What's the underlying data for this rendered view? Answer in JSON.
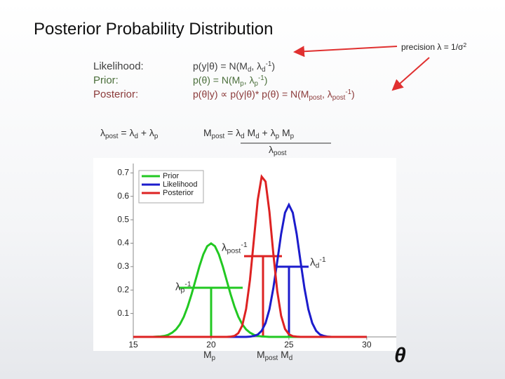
{
  "slide": {
    "title": "Posterior Probability Distribution",
    "precision_note": [
      "precision λ = 1/σ",
      "2"
    ],
    "labels": [
      "Likelihood:",
      "Prior:",
      "Posterior:"
    ],
    "likelihood_eq": [
      "p(y|θ) = N(M",
      "d",
      ", λ",
      "d",
      "-1",
      ")"
    ],
    "prior_eq": [
      "p(θ) = N(M",
      "p",
      ", λ",
      "p",
      "-1",
      ")"
    ],
    "posterior_eq": [
      "p(θ|y) ∝ p(y|θ)* p(θ) = N(M",
      "post",
      ", λ",
      "post",
      "-1",
      ")"
    ],
    "lambda_post_eq": [
      "λ",
      "post",
      " = λ",
      "d",
      " + λ",
      "p"
    ],
    "m_post_eq": {
      "lhs": [
        "M",
        "post",
        " = "
      ],
      "numerator": [
        "λ",
        "d",
        " M",
        "d",
        " + λ",
        "p",
        " M",
        "p"
      ],
      "denominator": [
        "λ",
        "post"
      ]
    }
  },
  "chart_data": {
    "type": "line",
    "x_label": "θ",
    "x": [
      15,
      15.25,
      15.5,
      15.75,
      16,
      16.25,
      16.5,
      16.75,
      17,
      17.25,
      17.5,
      17.75,
      18,
      18.25,
      18.5,
      18.75,
      19,
      19.25,
      19.5,
      19.75,
      20,
      20.25,
      20.5,
      20.75,
      21,
      21.25,
      21.5,
      21.75,
      22,
      22.25,
      22.5,
      22.75,
      23,
      23.25,
      23.5,
      23.75,
      24,
      24.25,
      24.5,
      24.75,
      25,
      25.25,
      25.5,
      25.75,
      26,
      26.25,
      26.5,
      26.75,
      27,
      27.25,
      27.5,
      27.75,
      28,
      28.25,
      28.5,
      28.75,
      29,
      29.25,
      29.5,
      29.75,
      30
    ],
    "series": [
      {
        "name": "Prior",
        "color": "#22c822",
        "values": [
          0,
          0,
          0,
          0,
          0,
          0,
          0.001,
          0.002,
          0.004,
          0.009,
          0.018,
          0.032,
          0.054,
          0.086,
          0.13,
          0.183,
          0.242,
          0.301,
          0.352,
          0.387,
          0.399,
          0.387,
          0.352,
          0.301,
          0.242,
          0.183,
          0.13,
          0.086,
          0.054,
          0.032,
          0.018,
          0.009,
          0.004,
          0.002,
          0.001,
          0,
          0,
          0,
          0,
          0,
          0,
          0,
          0,
          0,
          0,
          0,
          0,
          0,
          0,
          0,
          0,
          0,
          0,
          0,
          0,
          0,
          0,
          0,
          0,
          0,
          0
        ]
      },
      {
        "name": "Likelihood",
        "color": "#1c1ccc",
        "values": [
          0,
          0,
          0,
          0,
          0,
          0,
          0,
          0,
          0,
          0,
          0,
          0,
          0,
          0,
          0,
          0,
          0,
          0,
          0,
          0,
          0,
          0,
          0,
          0,
          0,
          0,
          0,
          0,
          0,
          0,
          0.001,
          0.004,
          0.01,
          0.026,
          0.059,
          0.118,
          0.208,
          0.321,
          0.439,
          0.53,
          0.564,
          0.53,
          0.439,
          0.321,
          0.208,
          0.118,
          0.059,
          0.026,
          0.01,
          0.004,
          0.001,
          0,
          0,
          0,
          0,
          0,
          0,
          0,
          0,
          0,
          0
        ]
      },
      {
        "name": "Posterior",
        "color": "#dd2222",
        "values": [
          0,
          0,
          0,
          0,
          0,
          0,
          0,
          0,
          0,
          0,
          0,
          0,
          0,
          0,
          0,
          0,
          0,
          0,
          0,
          0,
          0,
          0,
          0,
          0,
          0,
          0.001,
          0.004,
          0.016,
          0.048,
          0.119,
          0.244,
          0.415,
          0.585,
          0.684,
          0.663,
          0.533,
          0.355,
          0.196,
          0.09,
          0.034,
          0.011,
          0.003,
          0.001,
          0,
          0,
          0,
          0,
          0,
          0,
          0,
          0,
          0,
          0,
          0,
          0,
          0,
          0,
          0,
          0,
          0,
          0
        ]
      }
    ],
    "xlim": [
      15,
      31.9
    ],
    "ylim": [
      0,
      0.74
    ],
    "xticks": [
      15,
      20,
      25,
      30
    ],
    "yticks": [
      0.1,
      0.2,
      0.3,
      0.4,
      0.5,
      0.6,
      0.7
    ],
    "legend": "upper left",
    "annotations": {
      "lambda_post_inv": [
        "λ",
        "post",
        "-1"
      ],
      "lambda_d_inv": [
        "λ",
        "d",
        "-1"
      ],
      "lambda_p_inv": [
        "λ",
        "p",
        "-1"
      ],
      "m_p": [
        "M",
        "p"
      ],
      "m_post_m_d": [
        "M",
        "post",
        " M",
        "d"
      ]
    }
  }
}
